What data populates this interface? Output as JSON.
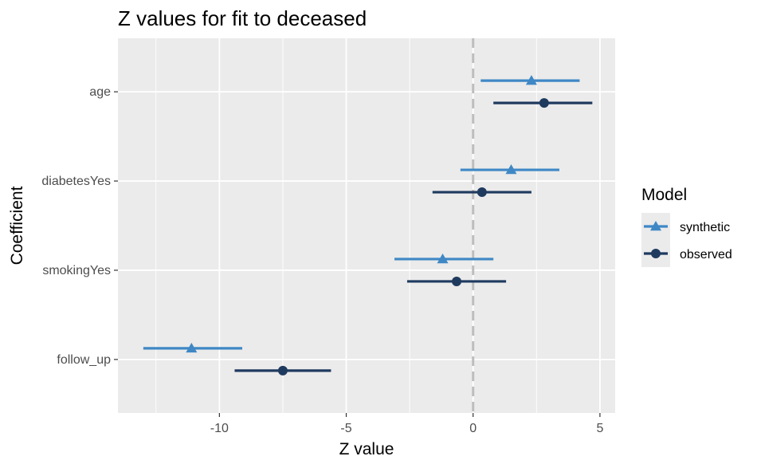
{
  "chart_data": {
    "type": "scatter",
    "title": "Z values for fit to deceased",
    "xlabel": "Z value",
    "ylabel": "Coefficient",
    "xlim": [
      -14,
      5.6
    ],
    "x_ticks": [
      -10,
      -5,
      0,
      5
    ],
    "x_tick_labels": [
      "-10",
      "-5",
      "0",
      "5"
    ],
    "categories": [
      "age",
      "diabetesYes",
      "smokingYes",
      "follow_up"
    ],
    "reference_line": {
      "x": 0,
      "style": "dashed",
      "color": "#bdbdbd"
    },
    "grid": true,
    "legend": {
      "title": "Model",
      "position": "right"
    },
    "series": [
      {
        "name": "synthetic",
        "color": "#3f88c5",
        "marker": "triangle",
        "points": [
          {
            "category": "age",
            "value": 2.3,
            "low": 0.3,
            "high": 4.2
          },
          {
            "category": "diabetesYes",
            "value": 1.5,
            "low": -0.5,
            "high": 3.4
          },
          {
            "category": "smokingYes",
            "value": -1.2,
            "low": -3.1,
            "high": 0.8
          },
          {
            "category": "follow_up",
            "value": -11.1,
            "low": -13.0,
            "high": -9.1
          }
        ]
      },
      {
        "name": "observed",
        "color": "#1f3a5f",
        "marker": "circle",
        "points": [
          {
            "category": "age",
            "value": 2.8,
            "low": 0.8,
            "high": 4.7
          },
          {
            "category": "diabetesYes",
            "value": 0.35,
            "low": -1.6,
            "high": 2.3
          },
          {
            "category": "smokingYes",
            "value": -0.65,
            "low": -2.6,
            "high": 1.3
          },
          {
            "category": "follow_up",
            "value": -7.5,
            "low": -9.4,
            "high": -5.6
          }
        ]
      }
    ]
  }
}
